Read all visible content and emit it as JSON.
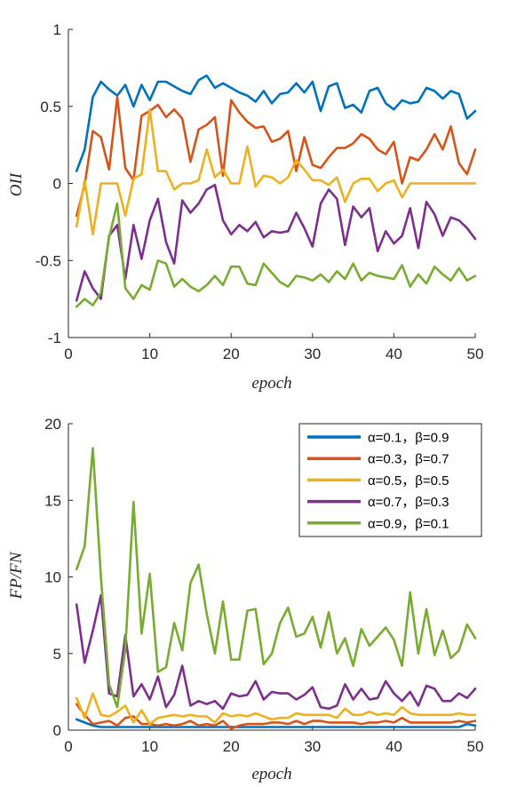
{
  "chart_data": [
    {
      "type": "line",
      "title": "",
      "xlabel": "epoch",
      "ylabel": "OII",
      "xlim": [
        0,
        50
      ],
      "ylim": [
        -1,
        1
      ],
      "xticks": [
        0,
        10,
        20,
        30,
        40,
        50
      ],
      "yticks": [
        1,
        0.5,
        0,
        -0.5,
        -1
      ],
      "ytick_labels": [
        "1",
        "0.5",
        "0",
        "-0.5",
        "-1"
      ],
      "grid": false,
      "x": [
        1,
        2,
        3,
        4,
        5,
        6,
        7,
        8,
        9,
        10,
        11,
        12,
        13,
        14,
        15,
        16,
        17,
        18,
        19,
        20,
        21,
        22,
        23,
        24,
        25,
        26,
        27,
        28,
        29,
        30,
        31,
        32,
        33,
        34,
        35,
        36,
        37,
        38,
        39,
        40,
        41,
        42,
        43,
        44,
        45,
        46,
        47,
        48,
        49,
        50
      ],
      "series": [
        {
          "color": "#0072BD",
          "values": [
            0.08,
            0.22,
            0.56,
            0.66,
            0.61,
            0.57,
            0.64,
            0.5,
            0.64,
            0.54,
            0.66,
            0.66,
            0.63,
            0.6,
            0.58,
            0.67,
            0.7,
            0.62,
            0.65,
            0.62,
            0.59,
            0.57,
            0.53,
            0.6,
            0.52,
            0.58,
            0.59,
            0.65,
            0.59,
            0.66,
            0.47,
            0.63,
            0.65,
            0.49,
            0.51,
            0.46,
            0.6,
            0.62,
            0.52,
            0.48,
            0.54,
            0.52,
            0.53,
            0.62,
            0.6,
            0.55,
            0.6,
            0.58,
            0.42,
            0.47
          ]
        },
        {
          "color": "#D95319",
          "values": [
            -0.21,
            -0.01,
            0.34,
            0.3,
            0.09,
            0.56,
            0.1,
            0.02,
            0.44,
            0.47,
            0.51,
            0.43,
            0.48,
            0.42,
            0.14,
            0.35,
            0.38,
            0.43,
            0.05,
            0.54,
            0.46,
            0.4,
            0.36,
            0.37,
            0.27,
            0.29,
            0.34,
            0.08,
            0.3,
            0.12,
            0.1,
            0.17,
            0.23,
            0.23,
            0.26,
            0.32,
            0.29,
            0.22,
            0.19,
            0.27,
            0.0,
            0.17,
            0.15,
            0.22,
            0.32,
            0.22,
            0.37,
            0.13,
            0.06,
            0.22
          ]
        },
        {
          "color": "#EDB120",
          "values": [
            -0.28,
            0.02,
            -0.33,
            0.0,
            0.0,
            0.0,
            -0.21,
            0.03,
            0.06,
            0.48,
            0.08,
            0.08,
            -0.04,
            0.0,
            0.0,
            0.02,
            0.22,
            0.04,
            0.09,
            0.0,
            0.0,
            0.24,
            -0.02,
            0.05,
            0.04,
            0.0,
            0.04,
            0.15,
            0.09,
            0.02,
            0.02,
            -0.01,
            0.04,
            -0.12,
            0.0,
            0.03,
            0.03,
            -0.05,
            0.0,
            0.02,
            -0.09,
            0.0,
            0.0,
            0.0,
            0.0,
            0.0,
            0.0,
            0.0,
            0.0,
            0.0
          ]
        },
        {
          "color": "#7E2F8E",
          "values": [
            -0.76,
            -0.57,
            -0.68,
            -0.75,
            -0.34,
            -0.27,
            -0.62,
            -0.27,
            -0.49,
            -0.24,
            -0.1,
            -0.38,
            -0.52,
            -0.11,
            -0.19,
            -0.13,
            -0.04,
            -0.01,
            -0.24,
            -0.33,
            -0.27,
            -0.31,
            -0.25,
            -0.35,
            -0.31,
            -0.32,
            -0.31,
            -0.19,
            -0.29,
            -0.41,
            -0.13,
            -0.04,
            -0.1,
            -0.4,
            -0.15,
            -0.22,
            -0.16,
            -0.44,
            -0.31,
            -0.39,
            -0.34,
            -0.16,
            -0.42,
            -0.12,
            -0.2,
            -0.34,
            -0.22,
            -0.24,
            -0.29,
            -0.36
          ]
        },
        {
          "color": "#77AC30",
          "values": [
            -0.8,
            -0.75,
            -0.79,
            -0.71,
            -0.35,
            -0.13,
            -0.68,
            -0.75,
            -0.66,
            -0.69,
            -0.5,
            -0.52,
            -0.67,
            -0.62,
            -0.67,
            -0.7,
            -0.66,
            -0.6,
            -0.66,
            -0.54,
            -0.54,
            -0.65,
            -0.66,
            -0.52,
            -0.58,
            -0.64,
            -0.67,
            -0.6,
            -0.61,
            -0.63,
            -0.59,
            -0.64,
            -0.57,
            -0.62,
            -0.52,
            -0.63,
            -0.58,
            -0.6,
            -0.61,
            -0.62,
            -0.53,
            -0.67,
            -0.59,
            -0.65,
            -0.54,
            -0.59,
            -0.63,
            -0.55,
            -0.63,
            -0.6
          ]
        }
      ]
    },
    {
      "type": "line",
      "title": "",
      "xlabel": "epoch",
      "ylabel": "FP/FN",
      "xlim": [
        0,
        50
      ],
      "ylim": [
        0,
        20
      ],
      "xticks": [
        0,
        10,
        20,
        30,
        40,
        50
      ],
      "yticks": [
        20,
        15,
        10,
        5,
        0
      ],
      "ytick_labels": [
        "20",
        "15",
        "10",
        "5",
        "0"
      ],
      "grid": false,
      "legend_position": "top-right",
      "x": [
        1,
        2,
        3,
        4,
        5,
        6,
        7,
        8,
        9,
        10,
        11,
        12,
        13,
        14,
        15,
        16,
        17,
        18,
        19,
        20,
        21,
        22,
        23,
        24,
        25,
        26,
        27,
        28,
        29,
        30,
        31,
        32,
        33,
        34,
        35,
        36,
        37,
        38,
        39,
        40,
        41,
        42,
        43,
        44,
        45,
        46,
        47,
        48,
        49,
        50
      ],
      "series": [
        {
          "name": "α=0.1，β=0.9",
          "color": "#0072BD",
          "values": [
            0.7,
            0.5,
            0.3,
            0.2,
            0.2,
            0.2,
            0.2,
            0.2,
            0.2,
            0.2,
            0.2,
            0.2,
            0.2,
            0.2,
            0.2,
            0.2,
            0.2,
            0.2,
            0.2,
            0.2,
            0.2,
            0.2,
            0.2,
            0.2,
            0.2,
            0.2,
            0.2,
            0.2,
            0.2,
            0.2,
            0.2,
            0.2,
            0.2,
            0.2,
            0.2,
            0.2,
            0.2,
            0.2,
            0.2,
            0.2,
            0.2,
            0.2,
            0.2,
            0.2,
            0.2,
            0.2,
            0.2,
            0.2,
            0.4,
            0.3
          ]
        },
        {
          "name": "α=0.3，β=0.7",
          "color": "#D95319",
          "values": [
            1.7,
            1.0,
            0.4,
            0.5,
            0.6,
            0.3,
            0.8,
            0.9,
            0.4,
            0.4,
            0.3,
            0.4,
            0.3,
            0.4,
            0.6,
            0.3,
            0.4,
            0.3,
            0.6,
            0.1,
            0.3,
            0.4,
            0.4,
            0.4,
            0.5,
            0.5,
            0.4,
            0.6,
            0.4,
            0.6,
            0.6,
            0.5,
            0.5,
            0.5,
            0.5,
            0.4,
            0.5,
            0.5,
            0.6,
            0.5,
            0.8,
            0.5,
            0.5,
            0.5,
            0.5,
            0.5,
            0.5,
            0.6,
            0.5,
            0.6
          ]
        },
        {
          "name": "α=0.5，β=0.5",
          "color": "#EDB120",
          "values": [
            2.1,
            0.8,
            2.4,
            1.0,
            0.9,
            1.2,
            1.6,
            0.5,
            1.3,
            0.4,
            0.8,
            0.9,
            1.0,
            0.9,
            1.0,
            0.9,
            0.9,
            0.5,
            1.1,
            0.9,
            1.0,
            0.9,
            1.1,
            0.9,
            0.7,
            0.8,
            0.8,
            1.1,
            1.0,
            1.0,
            1.0,
            1.0,
            0.8,
            1.4,
            1.0,
            1.0,
            1.2,
            1.0,
            1.1,
            1.0,
            1.5,
            1.1,
            1.0,
            1.0,
            1.0,
            1.0,
            1.0,
            1.1,
            1.0,
            1.0
          ]
        },
        {
          "name": "α=0.7，β=0.3",
          "color": "#7E2F8E",
          "values": [
            8.2,
            4.4,
            6.5,
            8.8,
            2.4,
            2.2,
            6.2,
            2.2,
            3.0,
            2.0,
            3.5,
            1.5,
            2.3,
            4.2,
            1.6,
            1.9,
            1.7,
            1.9,
            1.4,
            2.4,
            2.2,
            2.3,
            3.2,
            2.0,
            2.5,
            2.4,
            2.4,
            2.0,
            2.3,
            2.8,
            1.5,
            1.4,
            1.6,
            3.0,
            2.0,
            2.7,
            2.0,
            2.1,
            3.2,
            2.4,
            1.9,
            2.5,
            1.6,
            2.9,
            2.7,
            1.9,
            1.9,
            2.4,
            2.1,
            2.7
          ]
        },
        {
          "name": "α=0.9，β=0.1",
          "color": "#77AC30",
          "values": [
            10.5,
            12.0,
            18.4,
            10.0,
            3.0,
            1.5,
            5.3,
            14.9,
            6.3,
            10.2,
            3.8,
            4.1,
            7.0,
            5.2,
            9.6,
            10.8,
            7.6,
            5.0,
            8.4,
            4.6,
            4.6,
            7.8,
            7.9,
            4.3,
            5.0,
            7.0,
            8.0,
            6.1,
            6.3,
            7.4,
            5.4,
            7.7,
            5.0,
            6.0,
            4.2,
            6.6,
            5.5,
            6.1,
            6.7,
            5.9,
            4.2,
            9.0,
            5.0,
            7.9,
            4.9,
            6.5,
            4.7,
            5.2,
            6.9,
            6.0
          ]
        }
      ]
    }
  ]
}
